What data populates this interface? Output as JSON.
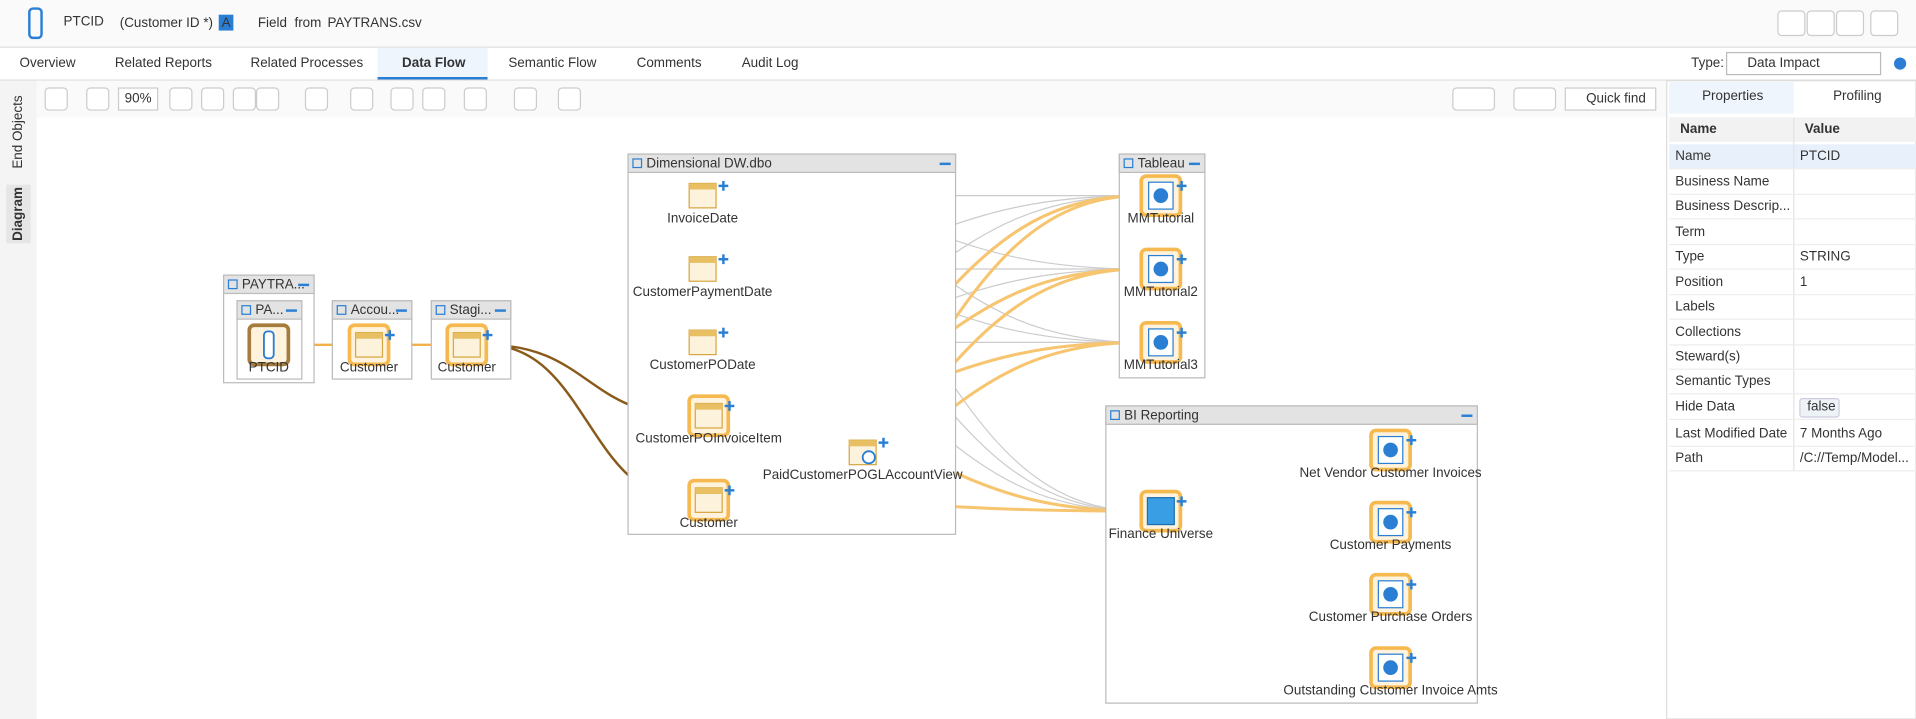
{
  "header": {
    "title": "PTCID",
    "subtitle": "(Customer ID *)",
    "badge": "A",
    "kind": "Field",
    "from": "from",
    "file": "PAYTRANS.csv"
  },
  "tabs": [
    "Overview",
    "Related Reports",
    "Related Processes",
    "Data Flow",
    "Semantic Flow",
    "Comments",
    "Audit Log"
  ],
  "type_selector": {
    "label": "Type:",
    "value": "Data Impact"
  },
  "toolbar": {
    "zoom": "90%",
    "quick_find": "Quick find"
  },
  "side_tabs": [
    "End Objects",
    "Diagram"
  ],
  "groups": [
    "PAYTRA...",
    "PA...",
    "Accou...",
    "Stagi...",
    "Dimensional DW.dbo",
    "Tableau",
    "BI Reporting"
  ],
  "nodes": [
    {
      "label": "PTCID"
    },
    {
      "label": "Customer"
    },
    {
      "label": "Customer"
    },
    {
      "label": "InvoiceDate"
    },
    {
      "label": "CustomerPaymentDate"
    },
    {
      "label": "CustomerPODate"
    },
    {
      "label": "CustomerPOInvoiceItem"
    },
    {
      "label": "PaidCustomerPOGLAccountView"
    },
    {
      "label": "Customer"
    },
    {
      "label": "MMTutorial"
    },
    {
      "label": "MMTutorial2"
    },
    {
      "label": "MMTutorial3"
    },
    {
      "label": "Finance Universe"
    },
    {
      "label": "Net Vendor Customer Invoices"
    },
    {
      "label": "Customer Payments"
    },
    {
      "label": "Customer Purchase Orders"
    },
    {
      "label": "Outstanding Customer Invoice Amts"
    }
  ],
  "panel": {
    "tabs": [
      "Properties",
      "Profiling"
    ],
    "columns": [
      "Name",
      "Value"
    ],
    "rows": [
      {
        "name": "Name",
        "value": "PTCID"
      },
      {
        "name": "Business Name"
      },
      {
        "name": "Business Descrip..."
      },
      {
        "name": "Term"
      },
      {
        "name": "Type",
        "value": "STRING"
      },
      {
        "name": "Position",
        "value": "1"
      },
      {
        "name": "Labels"
      },
      {
        "name": "Collections"
      },
      {
        "name": "Steward(s)"
      },
      {
        "name": "Semantic Types"
      },
      {
        "name": "Hide Data",
        "value": "false"
      },
      {
        "name": "Last Modified Date",
        "value": "7 Months Ago"
      },
      {
        "name": "Path",
        "value": "/C://Temp/Model..."
      }
    ]
  }
}
